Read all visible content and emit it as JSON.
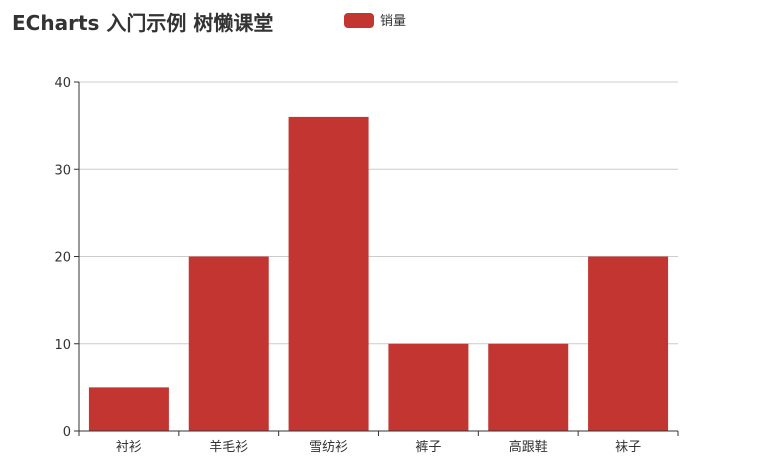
{
  "chart_data": {
    "type": "bar",
    "title": "ECharts 入门示例 树懒课堂",
    "legend": {
      "position": "top-center",
      "items": [
        "销量"
      ]
    },
    "categories": [
      "衬衫",
      "羊毛衫",
      "雪纺衫",
      "裤子",
      "高跟鞋",
      "袜子"
    ],
    "series": [
      {
        "name": "销量",
        "values": [
          5,
          20,
          36,
          10,
          10,
          20
        ],
        "color": "#c23531"
      }
    ],
    "ylim": [
      0,
      40
    ],
    "yticks": [
      0,
      10,
      20,
      30,
      40
    ],
    "grid": true,
    "xlabel": "",
    "ylabel": ""
  }
}
